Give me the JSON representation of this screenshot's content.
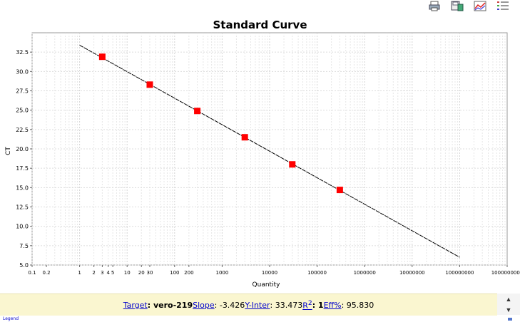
{
  "toolbar": {
    "icons": [
      "print-icon",
      "save-icon",
      "chart-icon",
      "list-icon"
    ]
  },
  "chart_data": {
    "type": "scatter",
    "title": "Standard Curve",
    "xlabel": "Quantity",
    "ylabel": "CT",
    "xscale": "log",
    "xlim": [
      0.1,
      1000000000
    ],
    "ylim": [
      5.0,
      35.0
    ],
    "x_ticks": [
      {
        "v": 0.1,
        "label": "0.1"
      },
      {
        "v": 0.2,
        "label": "0.2"
      },
      {
        "v": 1,
        "label": "1"
      },
      {
        "v": 2,
        "label": "2"
      },
      {
        "v": 3,
        "label": "3"
      },
      {
        "v": 4,
        "label": "4"
      },
      {
        "v": 5,
        "label": "5"
      },
      {
        "v": 10,
        "label": "10"
      },
      {
        "v": 20,
        "label": "20"
      },
      {
        "v": 30,
        "label": "30"
      },
      {
        "v": 100,
        "label": "100"
      },
      {
        "v": 200,
        "label": "200"
      },
      {
        "v": 1000,
        "label": "1000"
      },
      {
        "v": 10000,
        "label": "10000"
      },
      {
        "v": 100000,
        "label": "100000"
      },
      {
        "v": 1000000,
        "label": "1000000"
      },
      {
        "v": 10000000,
        "label": "10000000"
      },
      {
        "v": 100000000,
        "label": "100000000"
      },
      {
        "v": 1000000000,
        "label": "1000000000"
      }
    ],
    "y_ticks": [
      "5.0",
      "7.5",
      "10.0",
      "12.5",
      "15.0",
      "17.5",
      "20.0",
      "22.5",
      "25.0",
      "27.5",
      "30.0",
      "32.5"
    ],
    "grid": true,
    "series": [
      {
        "points": [
          {
            "x": 3,
            "y": 31.9
          },
          {
            "x": 30,
            "y": 28.3
          },
          {
            "x": 300,
            "y": 24.9
          },
          {
            "x": 3000,
            "y": 21.5
          },
          {
            "x": 30000,
            "y": 18.0
          },
          {
            "x": 300000,
            "y": 14.7
          }
        ],
        "color": "#ff0000"
      }
    ],
    "fit_line": {
      "x": [
        1,
        100000000
      ],
      "y": [
        33.4,
        6.0
      ],
      "color": "#000000"
    }
  },
  "status": {
    "target_label": "Target",
    "target_value": ": vero-219 ",
    "slope_label": "Slope",
    "slope_value": ": -3.426 ",
    "yinter_label": "Y-Inter",
    "yinter_value": ": 33.473 ",
    "r2_label": "R",
    "r2_sup": "2",
    "r2_value": ": 1 ",
    "eff_label": "Eff%",
    "eff_value": ": 95.830"
  },
  "legend_link": "Legend"
}
